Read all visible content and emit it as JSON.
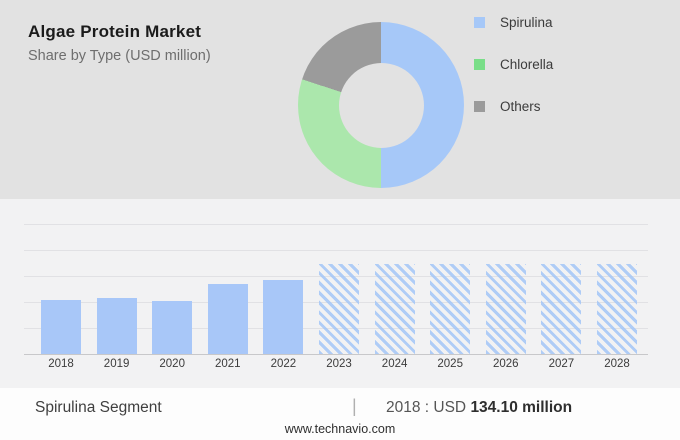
{
  "header": {
    "title": "Algae Protein Market",
    "subtitle": "Share by Type (USD million)"
  },
  "legend": {
    "items": [
      {
        "label": "Spirulina",
        "color": "#a6c8f8"
      },
      {
        "label": "Chlorella",
        "color": "#79de88"
      },
      {
        "label": "Others",
        "color": "#9b9b9b"
      }
    ]
  },
  "chart_data": [
    {
      "type": "pie",
      "title": "Share by Type (USD million)",
      "donut": true,
      "start_angle_deg": 0,
      "legend_position": "right",
      "slices": [
        {
          "label": "Spirulina",
          "percent": 50,
          "color": "#a6c8f8"
        },
        {
          "label": "Chlorella",
          "percent": 30,
          "color": "#abe7ac"
        },
        {
          "label": "Others",
          "percent": 20,
          "color": "#9b9b9b"
        }
      ]
    },
    {
      "type": "bar",
      "title": "Spirulina Segment (USD million)",
      "categories": [
        "2018",
        "2019",
        "2020",
        "2021",
        "2022",
        "2023",
        "2024",
        "2025",
        "2026",
        "2027",
        "2028"
      ],
      "values": [
        134.1,
        141,
        133,
        175,
        186,
        226,
        226,
        226,
        226,
        226,
        226
      ],
      "values_note": "2018 = 134.10 labeled; other values estimated from bar heights; 2023-2028 shown as equal-height hatched forecast bars",
      "actual_categories": [
        "2018",
        "2019",
        "2020",
        "2021",
        "2022"
      ],
      "forecast_categories": [
        "2023",
        "2024",
        "2025",
        "2026",
        "2027",
        "2028"
      ],
      "bar_color": "#a8c7f8",
      "forecast_style": "diagonal-hatch",
      "grid": true,
      "xlabel": "",
      "ylabel": "",
      "ylim": [
        0,
        385
      ]
    }
  ],
  "footer": {
    "segment_label": "Spirulina Segment",
    "divider": "|",
    "value_prefix": "2018 : USD ",
    "value_bold": "134.10 million",
    "website": "www.technavio.com"
  }
}
